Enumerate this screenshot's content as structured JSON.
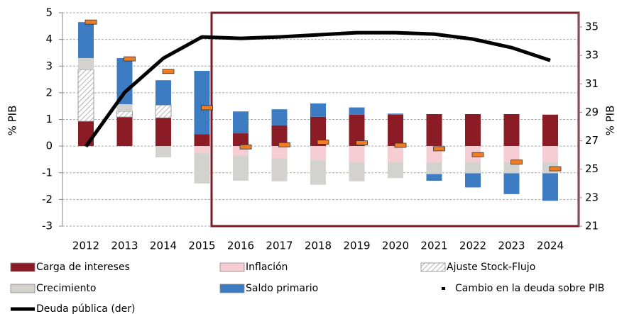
{
  "chart_data": {
    "type": "bar",
    "stacked": true,
    "y_label": "% PIB",
    "y2_label": "% PIB",
    "categories": [
      "2012",
      "2013",
      "2014",
      "2015",
      "2016",
      "2017",
      "2018",
      "2019",
      "2020",
      "2021",
      "2022",
      "2023",
      "2024"
    ],
    "ylim": [
      -3,
      5
    ],
    "yticks": [
      -3,
      -2,
      -1,
      0,
      1,
      2,
      3,
      4,
      5
    ],
    "y2lim": [
      21,
      36
    ],
    "y2ticks": [
      21,
      23,
      25,
      27,
      29,
      31,
      33,
      35
    ],
    "grid": true,
    "series": [
      {
        "name": "Carga de intereses",
        "type": "bar",
        "color": "#8b1c26",
        "values": [
          0.93,
          1.09,
          1.06,
          0.45,
          0.48,
          0.78,
          1.1,
          1.18,
          1.18,
          1.2,
          1.2,
          1.2,
          1.18
        ]
      },
      {
        "name": "Inflación",
        "type": "bar",
        "color": "#f5cdd2",
        "values": [
          null,
          null,
          null,
          -0.27,
          -0.35,
          -0.45,
          -0.52,
          -0.6,
          -0.6,
          -0.6,
          -0.6,
          -0.6,
          -0.6
        ]
      },
      {
        "name": "Ajuste Stock-Flujo",
        "type": "bar",
        "color": "#ffffff",
        "hatch": true,
        "values": [
          1.94,
          0.21,
          0.48,
          null,
          null,
          null,
          null,
          null,
          null,
          null,
          null,
          null,
          null
        ]
      },
      {
        "name": "Crecimiento",
        "type": "bar",
        "color": "#d3d2cf",
        "values": [
          0.43,
          0.27,
          -0.42,
          -1.13,
          -0.95,
          -0.87,
          -0.93,
          -0.72,
          -0.6,
          -0.45,
          -0.42,
          -0.42,
          -0.42
        ]
      },
      {
        "name": "Saldo primario",
        "type": "bar",
        "color": "#3d7cc2",
        "values": [
          1.35,
          1.73,
          0.93,
          2.37,
          0.82,
          0.6,
          0.5,
          0.27,
          0.04,
          -0.25,
          -0.53,
          -0.78,
          -1.03
        ]
      },
      {
        "name": "Cambio en la deuda sobre PIB",
        "type": "marker",
        "color": "#f07d22",
        "values": [
          4.65,
          3.27,
          2.8,
          1.44,
          -0.03,
          0.05,
          0.15,
          0.12,
          0.03,
          -0.1,
          -0.32,
          -0.6,
          -0.85
        ]
      },
      {
        "name": "Deuda pública (der)",
        "type": "line",
        "axis": "y2",
        "color": "#000000",
        "values": [
          26.6,
          30.4,
          32.8,
          34.3,
          34.2,
          34.3,
          34.45,
          34.6,
          34.6,
          34.5,
          34.15,
          33.55,
          32.65
        ]
      }
    ]
  }
}
